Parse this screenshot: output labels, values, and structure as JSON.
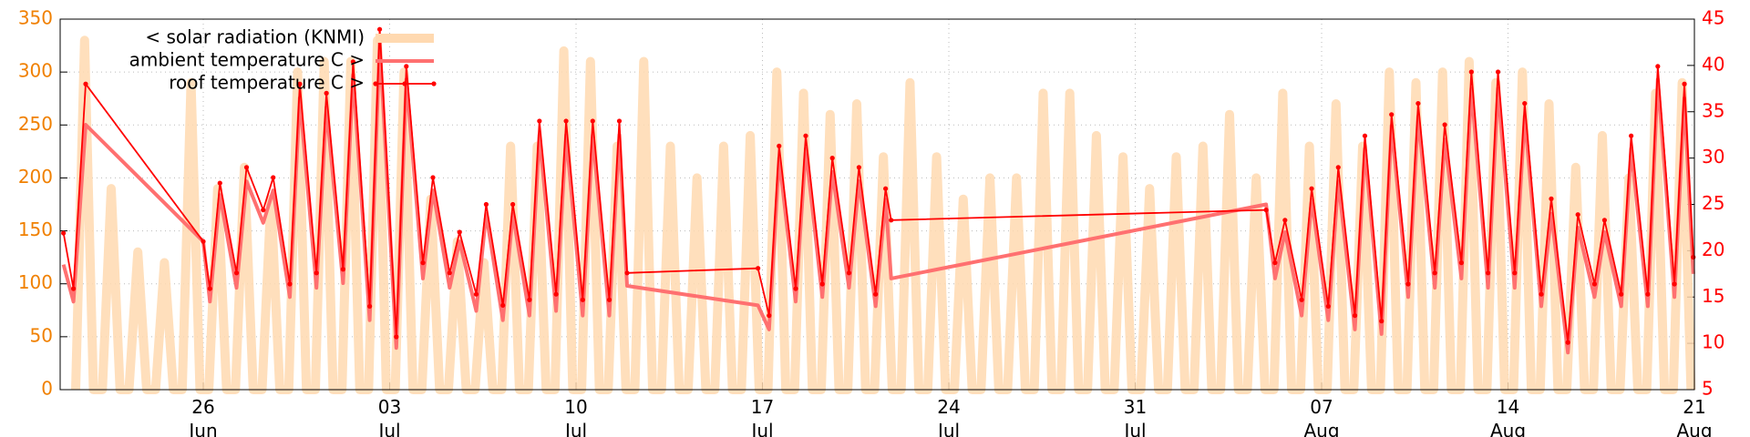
{
  "chart_data": {
    "type": "line",
    "xlim": [
      "06-20 15",
      "08-21 00"
    ],
    "xticks": [
      {
        "value": "06-26",
        "label": [
          "26",
          "Jun"
        ]
      },
      {
        "value": "07-03",
        "label": [
          "03",
          "Jul"
        ]
      },
      {
        "value": "07-10",
        "label": [
          "10",
          "Jul"
        ]
      },
      {
        "value": "07-17",
        "label": [
          "17",
          "Jul"
        ]
      },
      {
        "value": "07-24",
        "label": [
          "24",
          "Jul"
        ]
      },
      {
        "value": "07-31",
        "label": [
          "31",
          "Jul"
        ]
      },
      {
        "value": "08-07",
        "label": [
          "07",
          "Aug"
        ]
      },
      {
        "value": "08-14",
        "label": [
          "14",
          "Aug"
        ]
      },
      {
        "value": "08-21",
        "label": [
          "21",
          "Aug"
        ]
      }
    ],
    "ylim": [
      0,
      350
    ],
    "yticks": [
      0,
      50,
      100,
      150,
      200,
      250,
      300,
      350
    ],
    "y2lim": [
      5,
      45
    ],
    "y2ticks": [
      5,
      10,
      15,
      20,
      25,
      30,
      35,
      40,
      45
    ],
    "grid": true,
    "legend": "top left",
    "series": [
      {
        "name": "< solar radiation (KNMI)",
        "color": "#ffd9b0",
        "axis": "y",
        "x": [
          "06-21 05",
          "06-21 13",
          "06-21 21",
          "06-22 05",
          "06-22 13",
          "06-22 21",
          "06-23 05",
          "06-23 13",
          "06-23 21",
          "06-24 05",
          "06-24 13",
          "06-24 21",
          "06-25 05",
          "06-25 13",
          "06-25 21",
          "06-26 05",
          "06-26 13",
          "06-26 21",
          "06-27 05",
          "06-27 13",
          "06-27 21",
          "06-28 05",
          "06-28 13",
          "06-28 21",
          "06-29 05",
          "06-29 13",
          "06-29 21",
          "06-30 05",
          "06-30 13",
          "06-30 21",
          "07-01 05",
          "07-01 13",
          "07-01 21",
          "07-02 05",
          "07-02 13",
          "07-02 21",
          "07-03 05",
          "07-03 13",
          "07-03 21",
          "07-04 05",
          "07-04 13",
          "07-04 21",
          "07-05 05",
          "07-05 13",
          "07-05 21",
          "07-06 05",
          "07-06 13",
          "07-06 21",
          "07-07 05",
          "07-07 13",
          "07-07 21",
          "07-08 05",
          "07-08 13",
          "07-08 21",
          "07-09 05",
          "07-09 13",
          "07-09 21",
          "07-10 05",
          "07-10 13",
          "07-10 21",
          "07-11 05",
          "07-11 13",
          "07-11 21",
          "07-12 05",
          "07-12 13",
          "07-12 21",
          "07-13 05",
          "07-13 13",
          "07-13 21",
          "07-14 05",
          "07-14 13",
          "07-14 21",
          "07-15 05",
          "07-15 13",
          "07-15 21",
          "07-16 05",
          "07-16 13",
          "07-16 21",
          "07-17 05",
          "07-17 13",
          "07-17 21",
          "07-18 05",
          "07-18 13",
          "07-18 21",
          "07-19 05",
          "07-19 13",
          "07-19 21",
          "07-20 05",
          "07-20 13",
          "07-20 21",
          "07-21 05",
          "07-21 13",
          "07-21 21",
          "07-22 05",
          "07-22 13",
          "07-22 21",
          "07-23 05",
          "07-23 13",
          "07-23 21",
          "07-24 05",
          "07-24 13",
          "07-24 21",
          "07-25 05",
          "07-25 13",
          "07-25 21",
          "07-26 05",
          "07-26 13",
          "07-26 21",
          "07-27 05",
          "07-27 13",
          "07-27 21",
          "07-28 05",
          "07-28 13",
          "07-28 21",
          "07-29 05",
          "07-29 13",
          "07-29 21",
          "07-30 05",
          "07-30 13",
          "07-30 21",
          "07-31 05",
          "07-31 13",
          "07-31 21",
          "08-01 05",
          "08-01 13",
          "08-01 21",
          "08-02 05",
          "08-02 13",
          "08-02 21",
          "08-03 05",
          "08-03 13",
          "08-03 21",
          "08-04 05",
          "08-04 13",
          "08-04 21",
          "08-05 05",
          "08-05 13",
          "08-05 21",
          "08-06 05",
          "08-06 13",
          "08-06 21",
          "08-07 05",
          "08-07 13",
          "08-07 21",
          "08-08 05",
          "08-08 13",
          "08-08 21",
          "08-09 05",
          "08-09 13",
          "08-09 21",
          "08-10 05",
          "08-10 13",
          "08-10 21",
          "08-11 05",
          "08-11 13",
          "08-11 21",
          "08-12 05",
          "08-12 13",
          "08-12 21",
          "08-13 05",
          "08-13 13",
          "08-13 21",
          "08-14 05",
          "08-14 13",
          "08-14 21",
          "08-15 05",
          "08-15 13",
          "08-15 21",
          "08-16 05",
          "08-16 13",
          "08-16 21",
          "08-17 05",
          "08-17 13",
          "08-17 21",
          "08-18 05",
          "08-18 13",
          "08-18 21",
          "08-19 05",
          "08-19 13",
          "08-19 21",
          "08-20 05",
          "08-20 13",
          "08-20 21"
        ],
        "values": [
          0,
          330,
          0,
          0,
          190,
          0,
          0,
          130,
          0,
          0,
          120,
          0,
          0,
          290,
          0,
          0,
          190,
          0,
          0,
          210,
          0,
          0,
          180,
          0,
          0,
          300,
          0,
          0,
          310,
          0,
          0,
          310,
          0,
          0,
          330,
          0,
          0,
          300,
          0,
          0,
          180,
          0,
          0,
          140,
          0,
          0,
          120,
          0,
          0,
          230,
          0,
          0,
          230,
          0,
          0,
          320,
          0,
          0,
          310,
          0,
          0,
          230,
          0,
          0,
          310,
          0,
          0,
          230,
          0,
          0,
          200,
          0,
          0,
          230,
          0,
          0,
          240,
          0,
          0,
          300,
          0,
          0,
          280,
          0,
          0,
          260,
          0,
          0,
          270,
          0,
          0,
          220,
          0,
          0,
          290,
          0,
          0,
          220,
          0,
          0,
          180,
          0,
          0,
          200,
          0,
          0,
          200,
          0,
          0,
          280,
          0,
          0,
          280,
          0,
          0,
          240,
          0,
          0,
          220,
          0,
          0,
          190,
          0,
          0,
          220,
          0,
          0,
          230,
          0,
          0,
          260,
          0,
          0,
          200,
          0,
          0,
          280,
          0,
          0,
          230,
          0,
          0,
          270,
          0,
          0,
          230,
          0,
          0,
          300,
          0,
          0,
          290,
          0,
          0,
          300,
          0,
          0,
          310,
          0,
          0,
          290,
          0,
          0,
          300,
          0,
          0,
          270,
          0,
          0,
          210,
          0,
          0,
          240,
          0,
          0,
          200,
          0,
          0,
          280,
          0,
          0,
          290,
          0
        ]
      },
      {
        "name": "ambient temperature C >",
        "color": "#ff7070",
        "axis": "y2",
        "x": [
          "06-20 18",
          "06-21 03",
          "06-21 14",
          "06-26 00",
          "06-26 06",
          "06-26 15",
          "06-27 06",
          "06-27 15",
          "06-28 06",
          "06-28 15",
          "06-29 06",
          "06-29 15",
          "06-30 06",
          "06-30 15",
          "07-01 06",
          "07-01 15",
          "07-02 06",
          "07-02 15",
          "07-03 06",
          "07-03 15",
          "07-04 06",
          "07-04 15",
          "07-05 06",
          "07-05 15",
          "07-06 06",
          "07-06 15",
          "07-07 06",
          "07-07 15",
          "07-08 06",
          "07-08 15",
          "07-09 06",
          "07-09 15",
          "07-10 06",
          "07-10 15",
          "07-11 06",
          "07-11 15",
          "07-11 22",
          "07-16 20",
          "07-17 06",
          "07-17 15",
          "07-18 06",
          "07-18 15",
          "07-19 06",
          "07-19 15",
          "07-20 06",
          "07-20 15",
          "07-21 06",
          "07-21 15",
          "07-21 20",
          "08-04 22",
          "08-05 06",
          "08-05 15",
          "08-06 06",
          "08-06 15",
          "08-07 06",
          "08-07 15",
          "08-08 06",
          "08-08 15",
          "08-09 06",
          "08-09 15",
          "08-10 06",
          "08-10 15",
          "08-11 06",
          "08-11 15",
          "08-12 06",
          "08-12 15",
          "08-13 06",
          "08-13 15",
          "08-14 06",
          "08-14 15",
          "08-15 06",
          "08-15 15",
          "08-16 06",
          "08-16 15",
          "08-17 06",
          "08-17 15",
          "08-18 06",
          "08-18 15",
          "08-19 06",
          "08-19 15",
          "08-20 06",
          "08-20 15",
          "08-20 23"
        ],
        "values": [
          18.5,
          14.5,
          33.6,
          21,
          14.5,
          26,
          16,
          27.5,
          23,
          26.5,
          15,
          36.5,
          16,
          35.5,
          16.5,
          39,
          12.5,
          42.5,
          9.5,
          38.5,
          17,
          26.5,
          16,
          21,
          13.5,
          24,
          12.5,
          24,
          13,
          32.5,
          13.5,
          32.5,
          13,
          32.5,
          13,
          32.5,
          16.2,
          14.1,
          11.5,
          30,
          14.5,
          31,
          15,
          28.5,
          16,
          27.5,
          14,
          25.5,
          17,
          25,
          17,
          22,
          13,
          25.5,
          12.5,
          27.5,
          11.5,
          31,
          11,
          33.5,
          15,
          34.5,
          16,
          32,
          17,
          37.5,
          16,
          37.5,
          16,
          34.5,
          14,
          24,
          9,
          22.5,
          15,
          22,
          14,
          31,
          14,
          38.5,
          15,
          36.5,
          17.5
        ]
      },
      {
        "name": "roof temperature C >",
        "color": "#ff0000",
        "axis": "y2",
        "x": [
          "06-20 18",
          "06-21 03",
          "06-21 14",
          "06-26 00",
          "06-26 06",
          "06-26 15",
          "06-27 06",
          "06-27 15",
          "06-28 06",
          "06-28 15",
          "06-29 06",
          "06-29 15",
          "06-30 06",
          "06-30 15",
          "07-01 06",
          "07-01 15",
          "07-02 06",
          "07-02 15",
          "07-03 06",
          "07-03 15",
          "07-04 06",
          "07-04 15",
          "07-05 06",
          "07-05 15",
          "07-06 06",
          "07-06 15",
          "07-07 06",
          "07-07 15",
          "07-08 06",
          "07-08 15",
          "07-09 06",
          "07-09 15",
          "07-10 06",
          "07-10 15",
          "07-11 06",
          "07-11 15",
          "07-11 22",
          "07-16 20",
          "07-17 06",
          "07-17 15",
          "07-18 06",
          "07-18 15",
          "07-19 06",
          "07-19 15",
          "07-20 06",
          "07-20 15",
          "07-21 06",
          "07-21 15",
          "07-21 20",
          "08-04 22",
          "08-05 06",
          "08-05 15",
          "08-06 06",
          "08-06 15",
          "08-07 06",
          "08-07 15",
          "08-08 06",
          "08-08 15",
          "08-09 06",
          "08-09 15",
          "08-10 06",
          "08-10 15",
          "08-11 06",
          "08-11 15",
          "08-12 06",
          "08-12 15",
          "08-13 06",
          "08-13 15",
          "08-14 06",
          "08-14 15",
          "08-15 06",
          "08-15 15",
          "08-16 06",
          "08-16 15",
          "08-17 06",
          "08-17 15",
          "08-18 06",
          "08-18 15",
          "08-19 06",
          "08-19 15",
          "08-20 06",
          "08-20 15",
          "08-20 23"
        ],
        "values": [
          21.9,
          15.9,
          38,
          21,
          15.9,
          27.3,
          17.6,
          29,
          24.4,
          27.9,
          16.4,
          38,
          17.6,
          37,
          18,
          40.4,
          14,
          43.9,
          10.7,
          39.9,
          18.7,
          27.9,
          17.6,
          22,
          15.3,
          25,
          14.1,
          25,
          14.7,
          34,
          15.3,
          34,
          14.7,
          34,
          14.7,
          34,
          17.6,
          18.1,
          13,
          31.3,
          15.9,
          32.4,
          16.4,
          30,
          17.6,
          29,
          15.3,
          26.7,
          23.3,
          24.4,
          18.7,
          23.3,
          14.7,
          26.7,
          14,
          29,
          13,
          32.4,
          12.4,
          34.7,
          16.4,
          35.9,
          17.6,
          33.6,
          18.7,
          39.3,
          17.6,
          39.3,
          17.6,
          35.9,
          15.3,
          25.6,
          10.1,
          23.9,
          16.4,
          23.3,
          15.3,
          32.4,
          15.3,
          39.9,
          16.4,
          38,
          19.3
        ]
      }
    ]
  }
}
